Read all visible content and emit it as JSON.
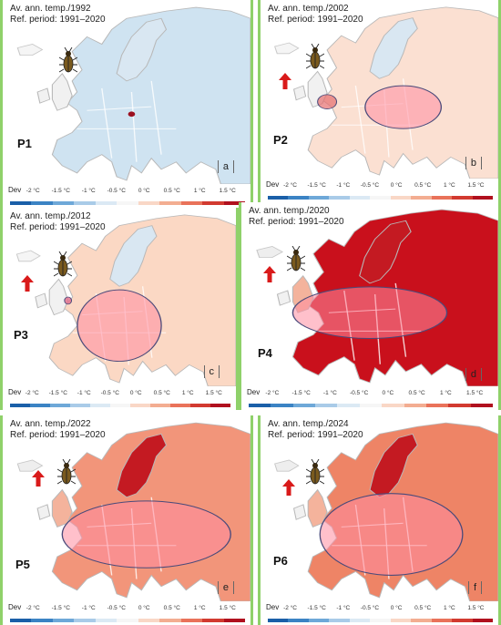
{
  "panels": [
    {
      "title": "Av. ann. temp./1992",
      "ref": "Ref. period: 1991–2020",
      "id": "P1",
      "label": "a",
      "fill": "#cfe3f1",
      "trend": false,
      "hot": false
    },
    {
      "title": "Av. ann. temp./2002",
      "ref": "Ref. period: 1991–2020",
      "id": "P2",
      "label": "b",
      "fill": "#fbe0d2",
      "trend": true,
      "hot": false
    },
    {
      "title": "Av. ann. temp./2012",
      "ref": "Ref. period: 1991–2020",
      "id": "P3",
      "label": "c",
      "fill": "#fbd8c4",
      "trend": true,
      "hot": false
    },
    {
      "title": "Av. ann. temp./2020",
      "ref": "Ref. period: 1991–2020",
      "id": "P4",
      "label": "d",
      "fill": "#c9101c",
      "trend": true,
      "hot": true
    },
    {
      "title": "Av. ann. temp./2022",
      "ref": "Ref. period: 1991–2020",
      "id": "P5",
      "label": "e",
      "fill": "#f2957a",
      "trend": true,
      "hot": true
    },
    {
      "title": "Av. ann. temp./2024",
      "ref": "Ref. period: 1991–2020",
      "id": "P6",
      "label": "f",
      "fill": "#ee8466",
      "trend": true,
      "hot": true
    }
  ],
  "legend": {
    "dev": "Dev",
    "ticks": [
      "-2 °C",
      "-1.5 °C",
      "-1 °C",
      "-0.5 °C",
      "0 °C",
      "0.5 °C",
      "1 °C",
      "1.5 °C"
    ],
    "colors": [
      "#1a5fa8",
      "#3b83c4",
      "#6ea8d8",
      "#a9cbe8",
      "#dbe9f4",
      "#f6f6f6",
      "#f9d7c6",
      "#f3ad91",
      "#e9725a",
      "#d23a30",
      "#b0101e"
    ]
  },
  "icons": {
    "beetle": "beetle-icon",
    "arrow": "up-arrow-icon"
  }
}
